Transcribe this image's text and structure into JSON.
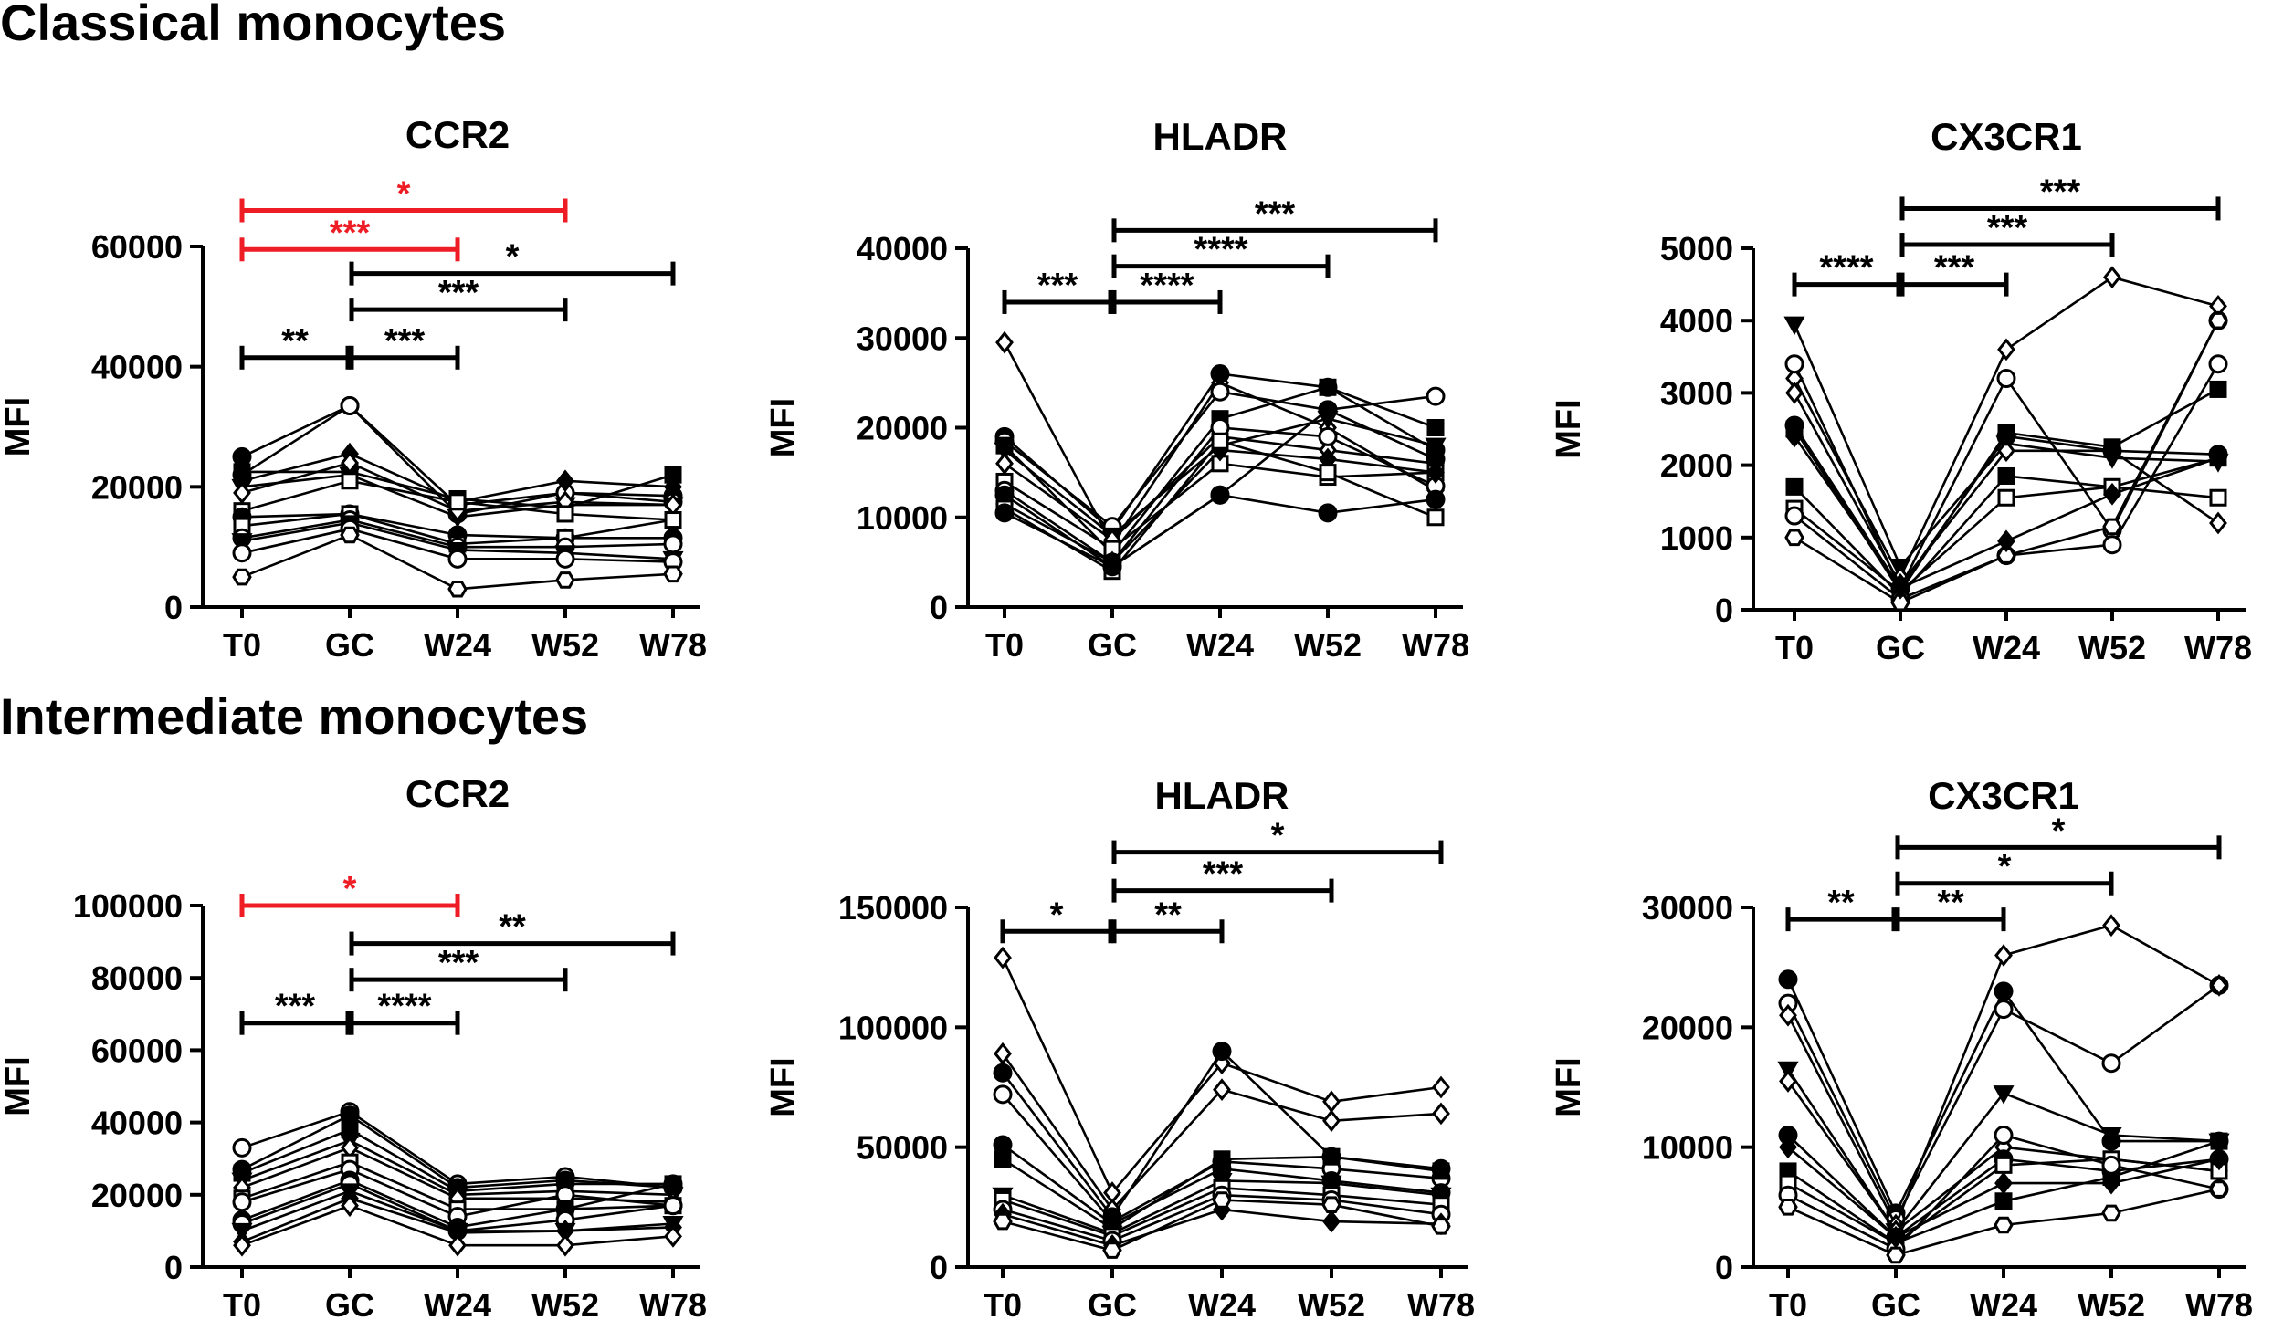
{
  "sections": [
    {
      "title": "Classical monocytes"
    },
    {
      "title": "Intermediate monocytes"
    }
  ],
  "colors": {
    "black": "#000000",
    "significant_red": "#ee1c25"
  },
  "chart_data": [
    {
      "id": "classical-ccr2",
      "type": "line",
      "title": "CCR2",
      "xlabel": "",
      "ylabel": "MFI",
      "categories": [
        "T0",
        "GC",
        "W24",
        "W52",
        "W78"
      ],
      "ylim": [
        0,
        60000
      ],
      "yticks": [
        0,
        20000,
        40000,
        60000
      ],
      "series": [
        {
          "marker": "circle-filled",
          "values": [
            25000,
            33500,
            17000,
            19000,
            18500
          ]
        },
        {
          "marker": "circle-open",
          "values": [
            22000,
            33500,
            15500,
            19000,
            17500
          ]
        },
        {
          "marker": "diamond-filled",
          "values": [
            21000,
            25500,
            17500,
            21000,
            20000
          ]
        },
        {
          "marker": "square-filled",
          "values": [
            22500,
            22500,
            18000,
            16500,
            22000
          ]
        },
        {
          "marker": "triangle-down-filled",
          "values": [
            20000,
            22000,
            15000,
            17000,
            17000
          ]
        },
        {
          "marker": "diamond-open",
          "values": [
            19000,
            24000,
            16000,
            17500,
            17000
          ]
        },
        {
          "marker": "square-open",
          "values": [
            16000,
            21000,
            17500,
            15500,
            14500
          ]
        },
        {
          "marker": "circle-filled",
          "values": [
            15000,
            15500,
            12000,
            11500,
            11500
          ]
        },
        {
          "marker": "square-open",
          "values": [
            13500,
            15500,
            10500,
            11500,
            14500
          ]
        },
        {
          "marker": "circle-open",
          "values": [
            11500,
            14500,
            10000,
            10000,
            10500
          ]
        },
        {
          "marker": "triangle-down-filled",
          "values": [
            11000,
            14000,
            9500,
            9000,
            8000
          ]
        },
        {
          "marker": "circle-open",
          "values": [
            9000,
            13000,
            8000,
            8000,
            7500
          ]
        },
        {
          "marker": "hexagon-open",
          "values": [
            5000,
            12000,
            3000,
            4500,
            5500
          ]
        }
      ],
      "brackets": [
        {
          "from": "T0",
          "to": "W52",
          "level": 66000,
          "label": "*",
          "color": "red"
        },
        {
          "from": "T0",
          "to": "W24",
          "level": 59500,
          "label": "***",
          "color": "red"
        },
        {
          "from": "GC",
          "to": "W78",
          "level": 55500,
          "label": "*",
          "color": "black"
        },
        {
          "from": "GC",
          "to": "W52",
          "level": 49500,
          "label": "***",
          "color": "black"
        },
        {
          "from": "T0",
          "to": "GC",
          "level": 41500,
          "label": "**",
          "color": "black"
        },
        {
          "from": "GC",
          "to": "W24",
          "level": 41500,
          "label": "***",
          "color": "black"
        }
      ]
    },
    {
      "id": "classical-hladr",
      "type": "line",
      "title": "HLADR",
      "xlabel": "",
      "ylabel": "MFI",
      "categories": [
        "T0",
        "GC",
        "W24",
        "W52",
        "W78"
      ],
      "ylim": [
        0,
        40000
      ],
      "yticks": [
        0,
        10000,
        20000,
        30000,
        40000
      ],
      "series": [
        {
          "marker": "diamond-open",
          "values": [
            29500,
            7000,
            25000,
            20000,
            13000
          ]
        },
        {
          "marker": "circle-filled",
          "values": [
            19000,
            8500,
            26000,
            24500,
            17500
          ]
        },
        {
          "marker": "circle-open",
          "values": [
            18500,
            9000,
            24000,
            22000,
            23500
          ]
        },
        {
          "marker": "square-filled",
          "values": [
            18000,
            6000,
            21000,
            24500,
            20000
          ]
        },
        {
          "marker": "triangle-down-filled",
          "values": [
            17500,
            8000,
            18000,
            21000,
            18000
          ]
        },
        {
          "marker": "diamond-open",
          "values": [
            16000,
            7500,
            19000,
            17500,
            16000
          ]
        },
        {
          "marker": "square-open",
          "values": [
            14000,
            6500,
            16000,
            14500,
            15000
          ]
        },
        {
          "marker": "circle-open",
          "values": [
            13000,
            5000,
            20000,
            19000,
            13500
          ]
        },
        {
          "marker": "circle-filled",
          "values": [
            12500,
            4500,
            12500,
            22000,
            16500
          ]
        },
        {
          "marker": "diamond-filled",
          "values": [
            11500,
            5000,
            17500,
            16500,
            15000
          ]
        },
        {
          "marker": "square-open",
          "values": [
            11000,
            4000,
            18500,
            15000,
            10000
          ]
        },
        {
          "marker": "circle-filled",
          "values": [
            10500,
            4500,
            12500,
            10500,
            12000
          ]
        }
      ],
      "brackets": [
        {
          "from": "GC",
          "to": "W78",
          "level": 42000,
          "label": "***",
          "color": "black"
        },
        {
          "from": "GC",
          "to": "W52",
          "level": 38000,
          "label": "****",
          "color": "black"
        },
        {
          "from": "T0",
          "to": "GC",
          "level": 34000,
          "label": "***",
          "color": "black"
        },
        {
          "from": "GC",
          "to": "W24",
          "level": 34000,
          "label": "****",
          "color": "black"
        }
      ]
    },
    {
      "id": "classical-cx3cr1",
      "type": "line",
      "title": "CX3CR1",
      "xlabel": "",
      "ylabel": "MFI",
      "categories": [
        "T0",
        "GC",
        "W24",
        "W52",
        "W78"
      ],
      "ylim": [
        0,
        5000
      ],
      "yticks": [
        0,
        1000,
        2000,
        3000,
        4000,
        5000
      ],
      "series": [
        {
          "marker": "triangle-down-filled",
          "values": [
            3950,
            600,
            2300,
            2100,
            2050
          ]
        },
        {
          "marker": "diamond-open",
          "values": [
            3200,
            450,
            3600,
            4600,
            4200
          ]
        },
        {
          "marker": "circle-open",
          "values": [
            3400,
            300,
            3200,
            1100,
            4000
          ]
        },
        {
          "marker": "diamond-open",
          "values": [
            3000,
            350,
            2200,
            2200,
            1200
          ]
        },
        {
          "marker": "circle-filled",
          "values": [
            2550,
            300,
            2400,
            2200,
            2150
          ]
        },
        {
          "marker": "square-filled",
          "values": [
            2500,
            250,
            2450,
            2250,
            3050
          ]
        },
        {
          "marker": "square-filled",
          "values": [
            1700,
            200,
            1850,
            1700,
            2100
          ]
        },
        {
          "marker": "square-open",
          "values": [
            1400,
            250,
            1550,
            1700,
            1550
          ]
        },
        {
          "marker": "circle-open",
          "values": [
            1300,
            150,
            750,
            900,
            3400
          ]
        },
        {
          "marker": "hexagon-open",
          "values": [
            1000,
            100,
            750,
            1150,
            4000
          ]
        },
        {
          "marker": "diamond-filled",
          "values": [
            2400,
            300,
            950,
            1600,
            2100
          ]
        }
      ],
      "brackets": [
        {
          "from": "GC",
          "to": "W78",
          "level": 5550,
          "label": "***",
          "color": "black"
        },
        {
          "from": "GC",
          "to": "W52",
          "level": 5050,
          "label": "***",
          "color": "black"
        },
        {
          "from": "T0",
          "to": "GC",
          "level": 4500,
          "label": "****",
          "color": "black"
        },
        {
          "from": "GC",
          "to": "W24",
          "level": 4500,
          "label": "***",
          "color": "black"
        }
      ]
    },
    {
      "id": "intermediate-ccr2",
      "type": "line",
      "title": "CCR2",
      "xlabel": "",
      "ylabel": "MFI",
      "categories": [
        "T0",
        "GC",
        "W24",
        "W52",
        "W78"
      ],
      "ylim": [
        0,
        100000
      ],
      "yticks": [
        0,
        20000,
        40000,
        60000,
        80000,
        100000
      ],
      "series": [
        {
          "marker": "circle-open",
          "values": [
            33000,
            43000,
            23000,
            25000,
            22000
          ]
        },
        {
          "marker": "circle-filled",
          "values": [
            27000,
            42000,
            22000,
            24000,
            22000
          ]
        },
        {
          "marker": "square-filled",
          "values": [
            26000,
            38000,
            21000,
            23000,
            23000
          ]
        },
        {
          "marker": "triangle-down-filled",
          "values": [
            24000,
            35000,
            20000,
            21000,
            20000
          ]
        },
        {
          "marker": "diamond-open",
          "values": [
            22000,
            33000,
            19000,
            19000,
            18000
          ]
        },
        {
          "marker": "square-open",
          "values": [
            19000,
            29000,
            16000,
            16000,
            17000
          ]
        },
        {
          "marker": "circle-open",
          "values": [
            18000,
            27000,
            14000,
            20000,
            17000
          ]
        },
        {
          "marker": "circle-filled",
          "values": [
            13000,
            24000,
            11000,
            16000,
            23000
          ]
        },
        {
          "marker": "circle-open",
          "values": [
            12000,
            23000,
            10000,
            13000,
            17000
          ]
        },
        {
          "marker": "triangle-down-filled",
          "values": [
            10000,
            21000,
            10000,
            10000,
            12000
          ]
        },
        {
          "marker": "diamond-filled",
          "values": [
            7000,
            19000,
            9500,
            10000,
            11000
          ]
        },
        {
          "marker": "diamond-open",
          "values": [
            6000,
            17000,
            6000,
            6000,
            8500
          ]
        }
      ],
      "brackets": [
        {
          "from": "T0",
          "to": "W24",
          "level": 100000,
          "label": "*",
          "color": "red"
        },
        {
          "from": "GC",
          "to": "W78",
          "level": 89500,
          "label": "**",
          "color": "black"
        },
        {
          "from": "GC",
          "to": "W52",
          "level": 79500,
          "label": "***",
          "color": "black"
        },
        {
          "from": "T0",
          "to": "GC",
          "level": 67500,
          "label": "***",
          "color": "black"
        },
        {
          "from": "GC",
          "to": "W24",
          "level": 67500,
          "label": "****",
          "color": "black"
        }
      ]
    },
    {
      "id": "intermediate-hladr",
      "type": "line",
      "title": "HLADR",
      "xlabel": "",
      "ylabel": "MFI",
      "categories": [
        "T0",
        "GC",
        "W24",
        "W52",
        "W78"
      ],
      "ylim": [
        0,
        150000
      ],
      "yticks": [
        0,
        50000,
        100000,
        150000
      ],
      "series": [
        {
          "marker": "diamond-open",
          "values": [
            129000,
            31000,
            85000,
            69000,
            75000
          ]
        },
        {
          "marker": "diamond-open",
          "values": [
            89000,
            24000,
            74000,
            61000,
            64000
          ]
        },
        {
          "marker": "circle-filled",
          "values": [
            81000,
            21000,
            90000,
            46000,
            41000
          ]
        },
        {
          "marker": "circle-open",
          "values": [
            72000,
            19000,
            44000,
            41000,
            37000
          ]
        },
        {
          "marker": "circle-filled",
          "values": [
            51000,
            18000,
            41000,
            36000,
            31000
          ]
        },
        {
          "marker": "square-filled",
          "values": [
            45000,
            16000,
            45000,
            46000,
            40000
          ]
        },
        {
          "marker": "triangle-down-filled",
          "values": [
            30000,
            14000,
            36000,
            35000,
            30000
          ]
        },
        {
          "marker": "square-open",
          "values": [
            28000,
            13000,
            33000,
            30000,
            26000
          ]
        },
        {
          "marker": "circle-open",
          "values": [
            24000,
            11000,
            30000,
            28000,
            22000
          ]
        },
        {
          "marker": "diamond-filled",
          "values": [
            22000,
            9000,
            24000,
            19000,
            18000
          ]
        },
        {
          "marker": "hexagon-open",
          "values": [
            19000,
            7000,
            28000,
            26000,
            17000
          ]
        }
      ],
      "brackets": [
        {
          "from": "GC",
          "to": "W78",
          "level": 173000,
          "label": "*",
          "color": "black"
        },
        {
          "from": "GC",
          "to": "W52",
          "level": 157000,
          "label": "***",
          "color": "black"
        },
        {
          "from": "T0",
          "to": "GC",
          "level": 140000,
          "label": "*",
          "color": "black"
        },
        {
          "from": "GC",
          "to": "W24",
          "level": 140000,
          "label": "**",
          "color": "black"
        }
      ]
    },
    {
      "id": "intermediate-cx3cr1",
      "type": "line",
      "title": "CX3CR1",
      "xlabel": "",
      "ylabel": "MFI",
      "categories": [
        "T0",
        "GC",
        "W24",
        "W52",
        "W78"
      ],
      "ylim": [
        0,
        30000
      ],
      "yticks": [
        0,
        10000,
        20000,
        30000
      ],
      "series": [
        {
          "marker": "circle-filled",
          "values": [
            24000,
            4500,
            23000,
            10500,
            10500
          ]
        },
        {
          "marker": "circle-open",
          "values": [
            22000,
            4000,
            21500,
            17000,
            23500
          ]
        },
        {
          "marker": "diamond-open",
          "values": [
            21000,
            3500,
            26000,
            28500,
            23500
          ]
        },
        {
          "marker": "triangle-down-filled",
          "values": [
            16500,
            3000,
            14500,
            11000,
            10500
          ]
        },
        {
          "marker": "diamond-open",
          "values": [
            15500,
            3000,
            10000,
            9000,
            8000
          ]
        },
        {
          "marker": "circle-filled",
          "values": [
            11000,
            2500,
            9000,
            8000,
            9000
          ]
        },
        {
          "marker": "square-filled",
          "values": [
            8000,
            2000,
            5500,
            7500,
            10500
          ]
        },
        {
          "marker": "square-open",
          "values": [
            7000,
            2000,
            8500,
            9000,
            8000
          ]
        },
        {
          "marker": "circle-open",
          "values": [
            6000,
            1500,
            11000,
            8500,
            6500
          ]
        },
        {
          "marker": "hexagon-open",
          "values": [
            5000,
            1000,
            3500,
            4500,
            6500
          ]
        },
        {
          "marker": "diamond-filled",
          "values": [
            10000,
            2500,
            7000,
            7000,
            9000
          ]
        }
      ],
      "brackets": [
        {
          "from": "GC",
          "to": "W78",
          "level": 35000,
          "label": "*",
          "color": "black"
        },
        {
          "from": "GC",
          "to": "W52",
          "level": 32000,
          "label": "*",
          "color": "black"
        },
        {
          "from": "T0",
          "to": "GC",
          "level": 29000,
          "label": "**",
          "color": "black"
        },
        {
          "from": "GC",
          "to": "W24",
          "level": 29000,
          "label": "**",
          "color": "black"
        }
      ]
    }
  ]
}
